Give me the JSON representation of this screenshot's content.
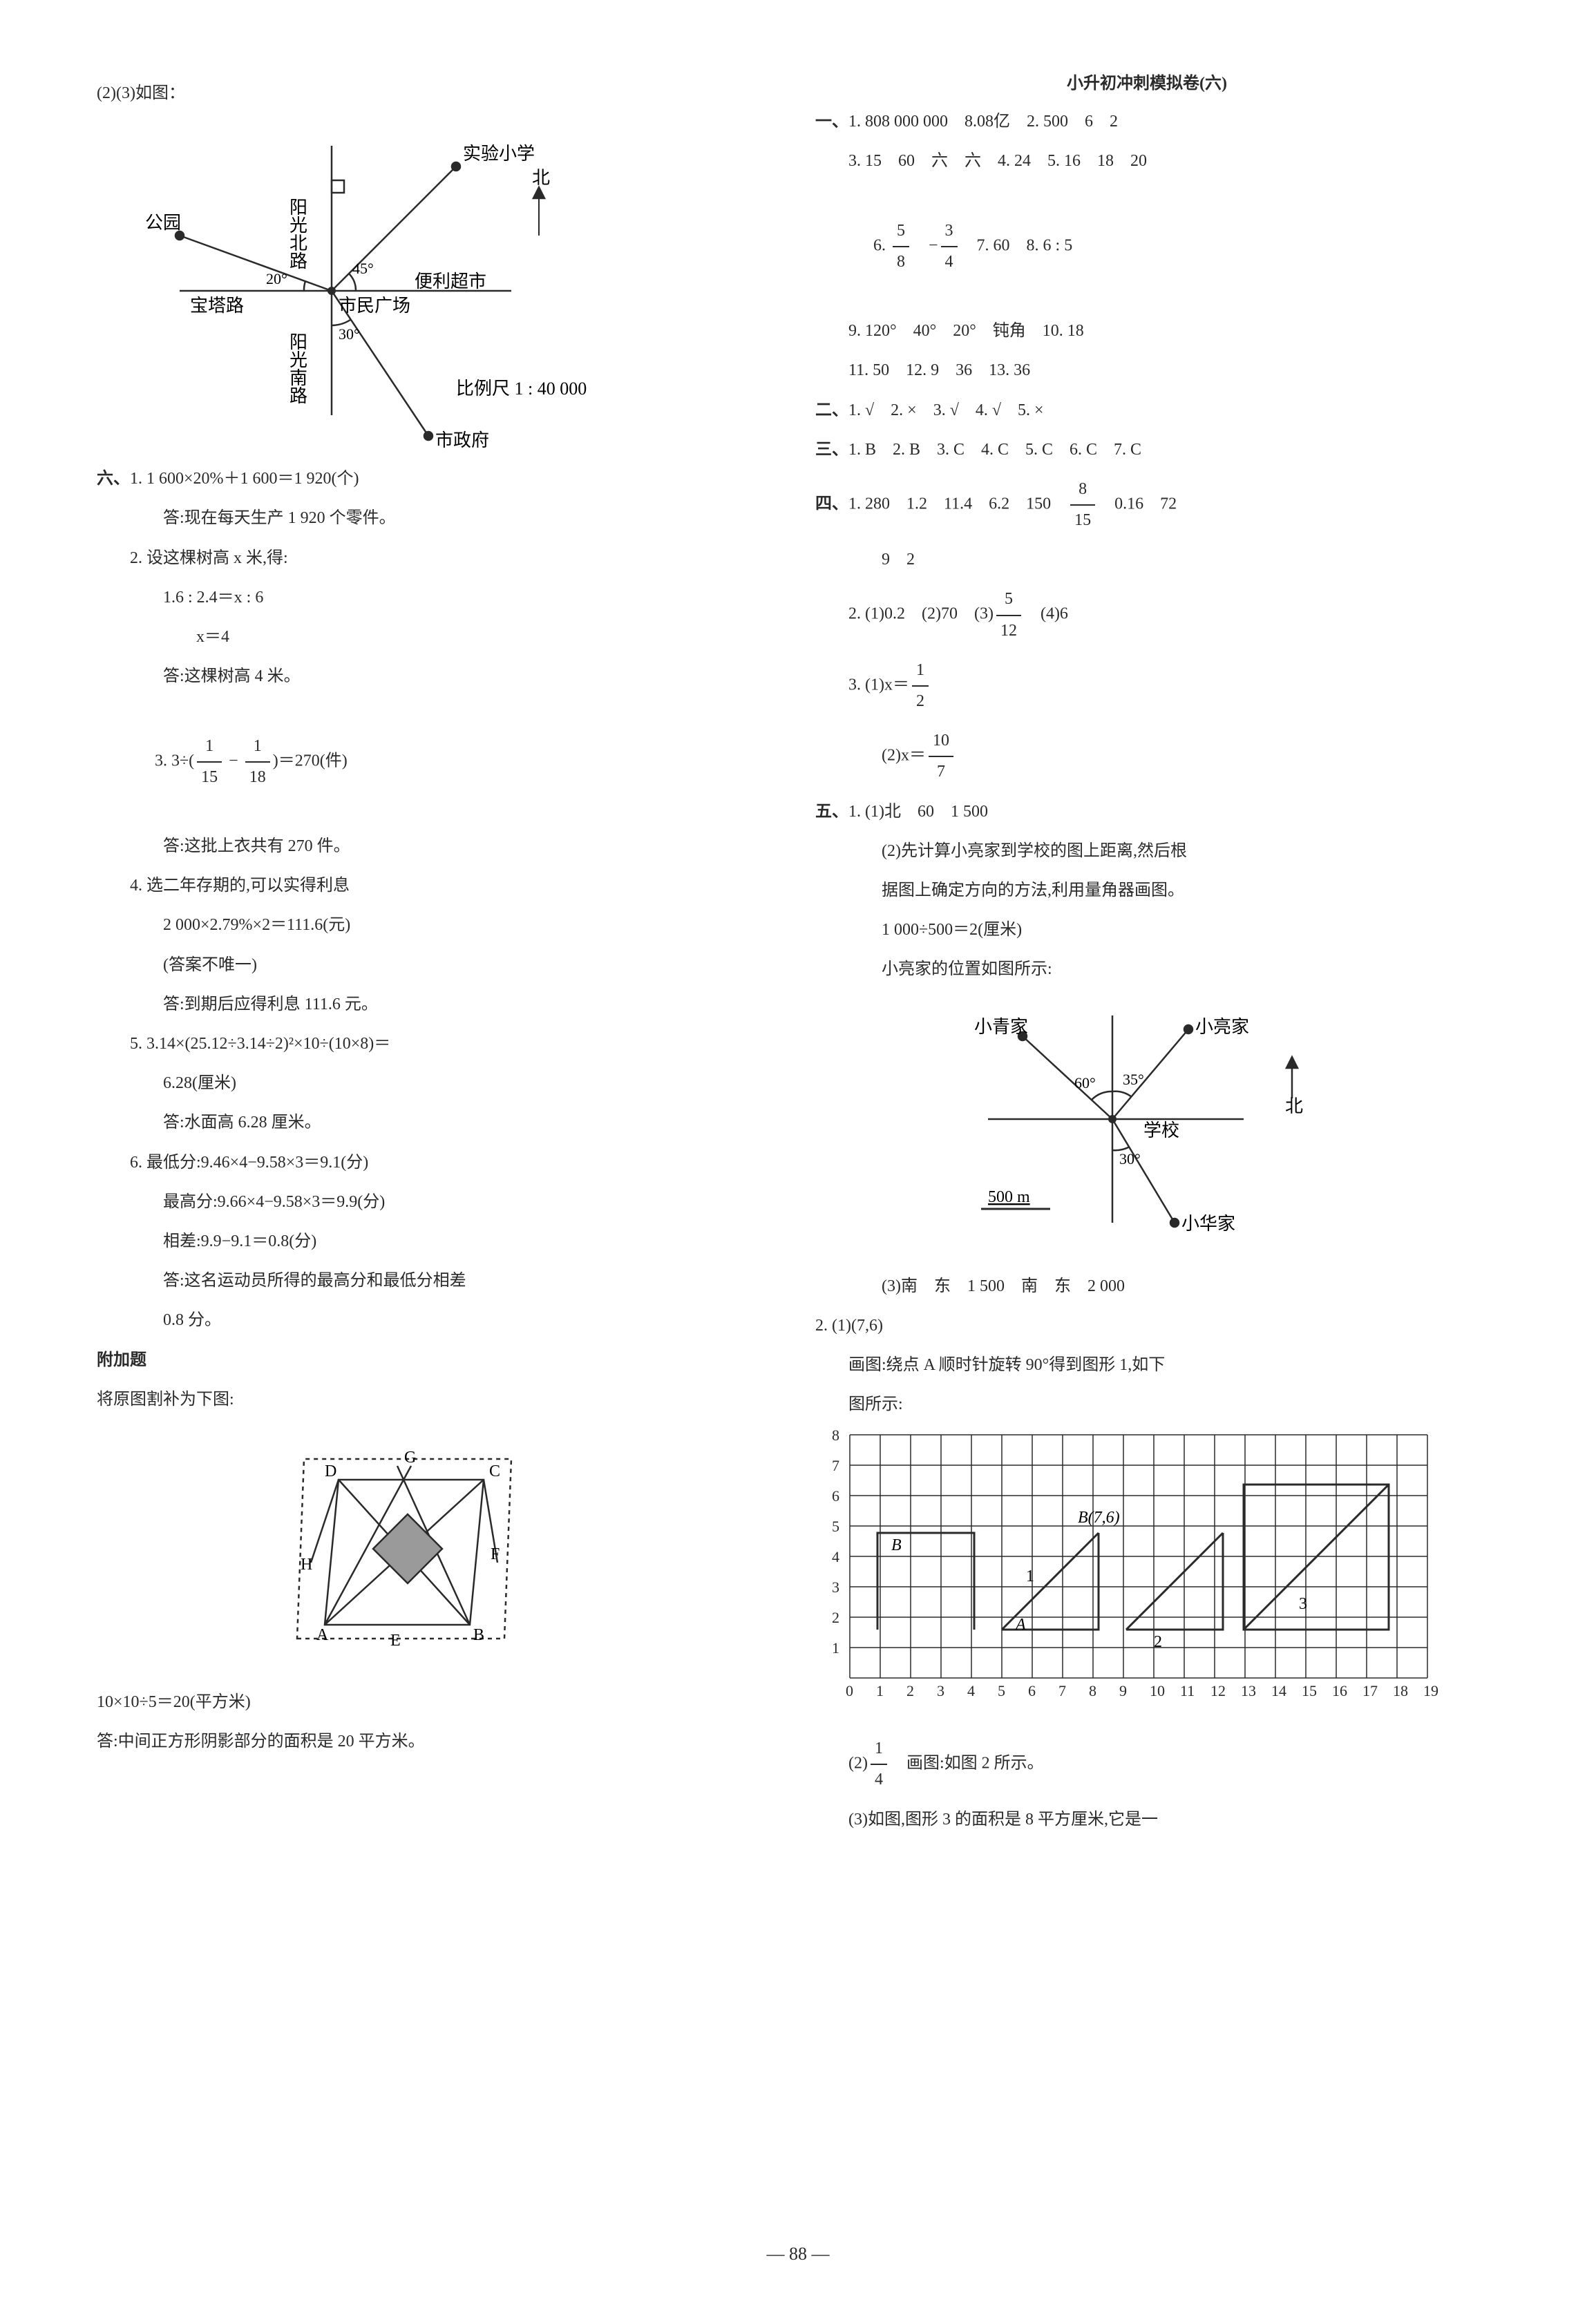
{
  "left": {
    "header": "(2)(3)如图：",
    "diagram1": {
      "labels": {
        "shiyan": "实验小学",
        "yangguangbei": "阳光北路",
        "gongyuan": "公园",
        "bei": "北",
        "angle45": "45°",
        "bianli": "便利超市",
        "angle20": "20°",
        "baota": "宝塔路",
        "shimin": "市民广场",
        "yangguangnan": "阳光南路",
        "angle30": "30°",
        "bili": "比例尺 1 : 40 000",
        "shizheng": "市政府"
      },
      "colors": {
        "line": "#2a2a2a"
      }
    },
    "section6": {
      "header": "六、",
      "q1": {
        "line1": "1. 1 600×20%＋1 600＝1 920(个)",
        "line2": "答:现在每天生产 1 920 个零件。"
      },
      "q2": {
        "line1": "2. 设这棵树高 x 米,得:",
        "line2": "1.6 : 2.4＝x : 6",
        "line3": "x＝4",
        "line4": "答:这棵树高 4 米。"
      },
      "q3": {
        "prefix": "3. 3÷(",
        "frac1num": "1",
        "frac1den": "15",
        "mid": " − ",
        "frac2num": "1",
        "frac2den": "18",
        "suffix": ")＝270(件)",
        "line2": "答:这批上衣共有 270 件。"
      },
      "q4": {
        "line1": "4. 选二年存期的,可以实得利息",
        "line2": "2 000×2.79%×2＝111.6(元)",
        "line3": "(答案不唯一)",
        "line4": "答:到期后应得利息 111.6 元。"
      },
      "q5": {
        "line1": "5. 3.14×(25.12÷3.14÷2)²×10÷(10×8)＝",
        "line2": "6.28(厘米)",
        "line3": "答:水面高 6.28 厘米。"
      },
      "q6": {
        "line1": "6. 最低分:9.46×4−9.58×3＝9.1(分)",
        "line2": "最高分:9.66×4−9.58×3＝9.9(分)",
        "line3": "相差:9.9−9.1＝0.8(分)",
        "line4": "答:这名运动员所得的最高分和最低分相差",
        "line5": "0.8 分。"
      }
    },
    "extra": {
      "header": "附加题",
      "line1": "将原图割补为下图:",
      "diagram2": {
        "labels": {
          "A": "A",
          "B": "B",
          "C": "C",
          "D": "D",
          "E": "E",
          "F": "F",
          "G": "G",
          "H": "H"
        },
        "fill": "#9a9a9a"
      },
      "line2": "10×10÷5＝20(平方米)",
      "line3": "答:中间正方形阴影部分的面积是 20 平方米。"
    }
  },
  "right": {
    "title": "小升初冲刺模拟卷(六)",
    "s1": {
      "header": "一、",
      "l1": "1. 808 000 000　8.08亿　2. 500　6　2",
      "l2": "3. 15　60　六　六　4. 24　5. 16　18　20",
      "l3pre": "6. ",
      "f1n": "5",
      "f1d": "8",
      "neg": "　−",
      "f2n": "3",
      "f2d": "4",
      "l3post": "　7. 60　8. 6 : 5",
      "l4": "9. 120°　40°　20°　钝角　10. 18",
      "l5": "11. 50　12. 9　36　13. 36"
    },
    "s2": {
      "header": "二、",
      "l1": "1. √　2. ×　3. √　4. √　5. ×"
    },
    "s3": {
      "header": "三、",
      "l1": "1. B　2. B　3. C　4. C　5. C　6. C　7. C"
    },
    "s4": {
      "header": "四、",
      "l1pre": "1. 280　1.2　11.4　6.2　150　",
      "f1n": "8",
      "f1d": "15",
      "l1post": "　0.16　72",
      "l1b": "9　2",
      "l2pre": "2. (1)0.2　(2)70　(3)",
      "f2n": "5",
      "f2d": "12",
      "l2post": "　(4)6",
      "l3pre": "3. (1)x＝",
      "f3n": "1",
      "f3d": "2",
      "l4pre": "(2)x＝",
      "f4n": "10",
      "f4d": "7"
    },
    "s5": {
      "header": "五、",
      "q1": {
        "l1": "1. (1)北　60　1 500",
        "l2": "(2)先计算小亮家到学校的图上距离,然后根",
        "l3": "据图上确定方向的方法,利用量角器画图。",
        "l4": "1 000÷500＝2(厘米)",
        "l5": "小亮家的位置如图所示:"
      },
      "diagram3": {
        "labels": {
          "xiaoqing": "小青家",
          "xiaoliang": "小亮家",
          "angle60": "60°",
          "angle35": "35°",
          "bei": "北",
          "xuexiao": "学校",
          "angle30": "30°",
          "scale": "500 m",
          "xiaohua": "小华家"
        }
      },
      "q1c": "(3)南　东　1 500　南　东　2 000",
      "q2": {
        "l1": "2. (1)(7,6)",
        "l2": "画图:绕点 A 顺时针旋转 90°得到图形 1,如下",
        "l3": "图所示:"
      },
      "grid": {
        "xmax": 19,
        "ymax": 8,
        "labels": {
          "B": "B",
          "B76": "B(7,6)",
          "A": "A",
          "n1": "1",
          "n2": "2",
          "n3": "3"
        }
      },
      "q2b_pre": "(2)",
      "q2b_fn": "1",
      "q2b_fd": "4",
      "q2b_post": "　画图:如图 2 所示。",
      "q2c": "(3)如图,图形 3 的面积是 8 平方厘米,它是一"
    }
  },
  "pageNum": "— 88 —"
}
